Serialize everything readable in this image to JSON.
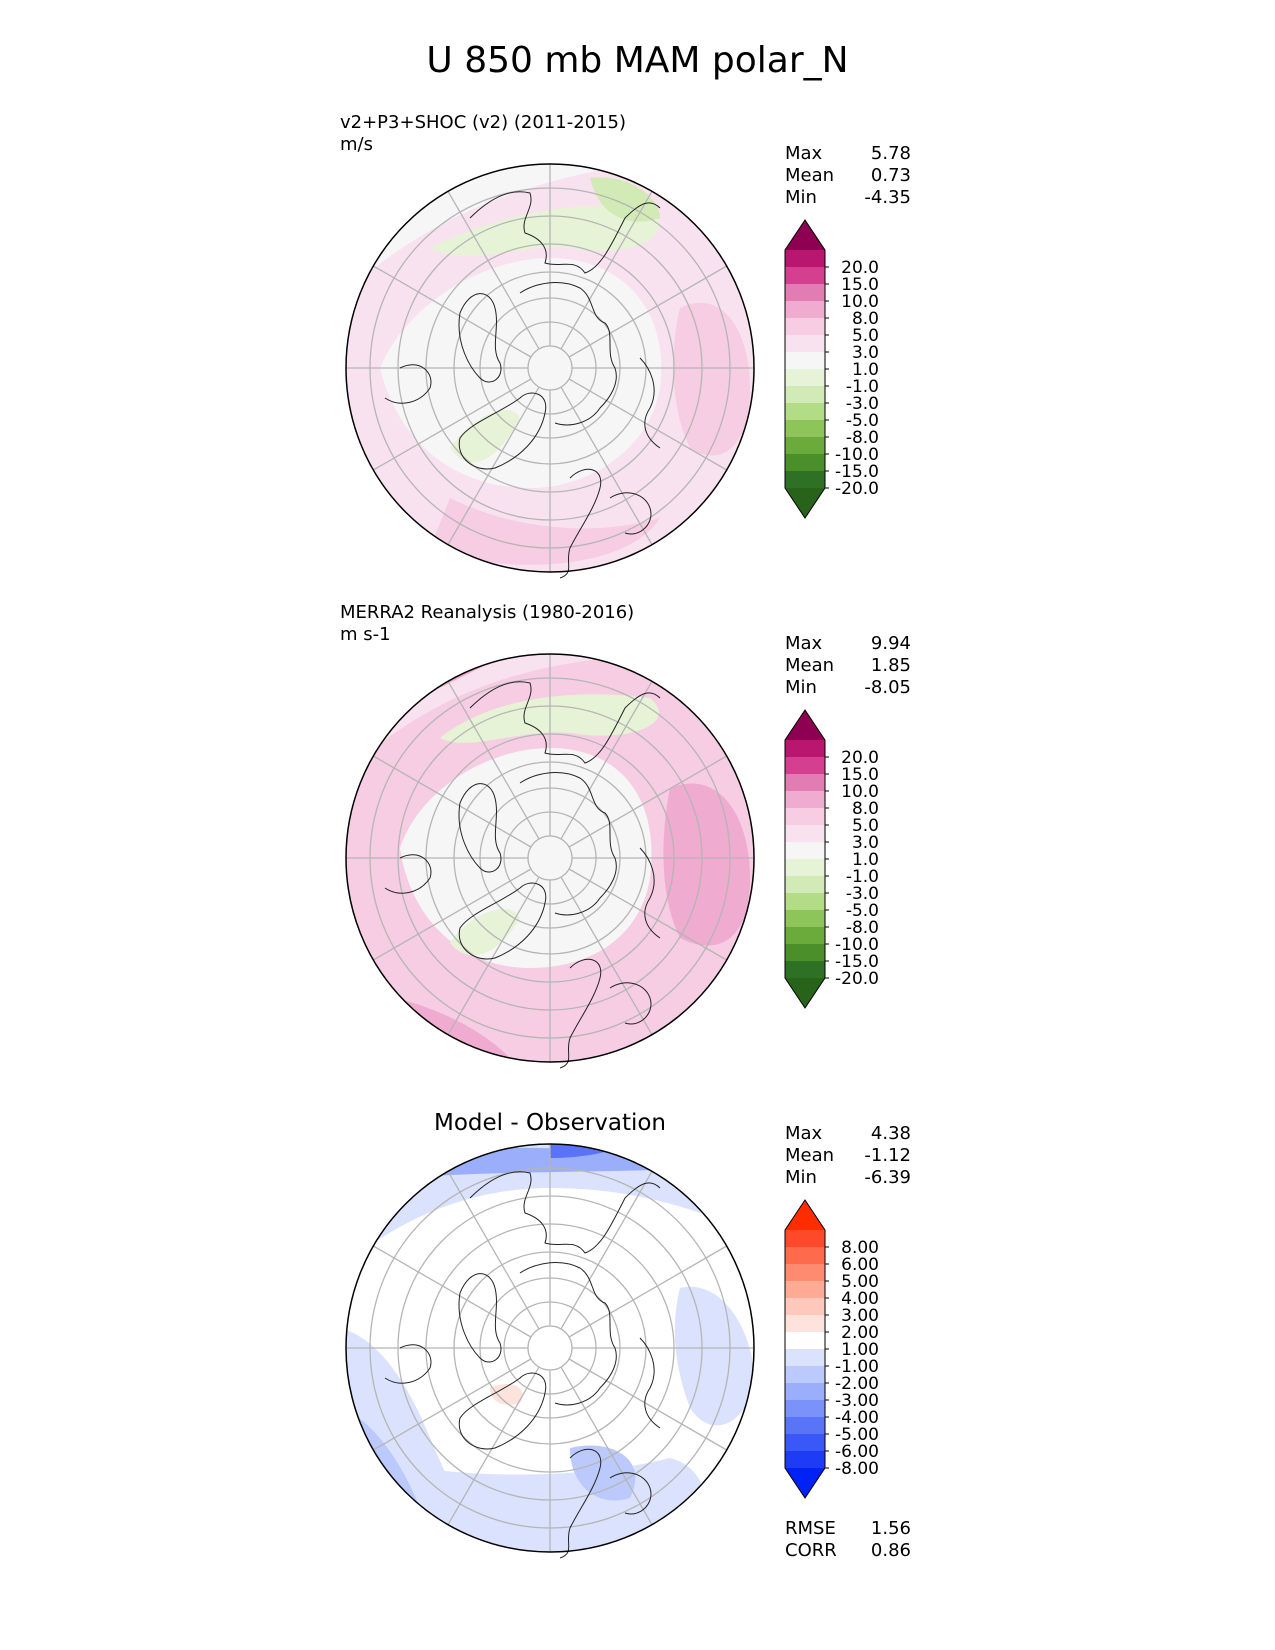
{
  "title": "U 850 mb MAM polar_N",
  "chart_data": [
    {
      "type": "heatmap",
      "projection": "north polar stereographic",
      "title": "v2+P3+SHOC (v2) (2011-2015)",
      "units": "m/s",
      "stats": {
        "max_label": "Max",
        "max": "5.78",
        "mean_label": "Mean",
        "mean": "0.73",
        "min_label": "Min",
        "min": "-4.35"
      },
      "colorbar": {
        "levels": [
          "20.0",
          "15.0",
          "10.0",
          "8.0",
          "5.0",
          "3.0",
          "1.0",
          "-1.0",
          "-3.0",
          "-5.0",
          "-8.0",
          "-10.0",
          "-15.0",
          "-20.0"
        ],
        "colors": [
          "#8e0152",
          "#b8166f",
          "#d43f8f",
          "#e27db4",
          "#efabd0",
          "#f6cde3",
          "#f9e2ef",
          "#f6f6f6",
          "#e7f3d6",
          "#d2eab6",
          "#b3dc87",
          "#8ec55a",
          "#6aab3b",
          "#4a8f2a",
          "#2e7124",
          "#276419"
        ],
        "extend": "both"
      }
    },
    {
      "type": "heatmap",
      "projection": "north polar stereographic",
      "title": "MERRA2 Reanalysis (1980-2016)",
      "units": "m s-1",
      "stats": {
        "max_label": "Max",
        "max": "9.94",
        "mean_label": "Mean",
        "mean": "1.85",
        "min_label": "Min",
        "min": "-8.05"
      },
      "colorbar": {
        "levels": [
          "20.0",
          "15.0",
          "10.0",
          "8.0",
          "5.0",
          "3.0",
          "1.0",
          "-1.0",
          "-3.0",
          "-5.0",
          "-8.0",
          "-10.0",
          "-15.0",
          "-20.0"
        ],
        "colors": [
          "#8e0152",
          "#b8166f",
          "#d43f8f",
          "#e27db4",
          "#efabd0",
          "#f6cde3",
          "#f9e2ef",
          "#f6f6f6",
          "#e7f3d6",
          "#d2eab6",
          "#b3dc87",
          "#8ec55a",
          "#6aab3b",
          "#4a8f2a",
          "#2e7124",
          "#276419"
        ],
        "extend": "both"
      }
    },
    {
      "type": "heatmap",
      "projection": "north polar stereographic",
      "title": "Model - Observation",
      "stats": {
        "max_label": "Max",
        "max": "4.38",
        "mean_label": "Mean",
        "mean": "-1.12",
        "min_label": "Min",
        "min": "-6.39"
      },
      "metrics": {
        "rmse_label": "RMSE",
        "rmse": "1.56",
        "corr_label": "CORR",
        "corr": "0.86"
      },
      "colorbar": {
        "levels": [
          "8.00",
          "6.00",
          "5.00",
          "4.00",
          "3.00",
          "2.00",
          "1.00",
          "-1.00",
          "-2.00",
          "-3.00",
          "-4.00",
          "-5.00",
          "-6.00",
          "-8.00"
        ],
        "colors": [
          "#fe2d00",
          "#fe4a2b",
          "#fe6a4c",
          "#fe8a70",
          "#feab96",
          "#fec8bb",
          "#fde3dc",
          "#ffffff",
          "#dbe2fd",
          "#bcc9fc",
          "#9baefb",
          "#7b92fa",
          "#5a74f8",
          "#3a57f7",
          "#1e3cf6",
          "#0022f5"
        ],
        "extend": "both"
      }
    }
  ]
}
